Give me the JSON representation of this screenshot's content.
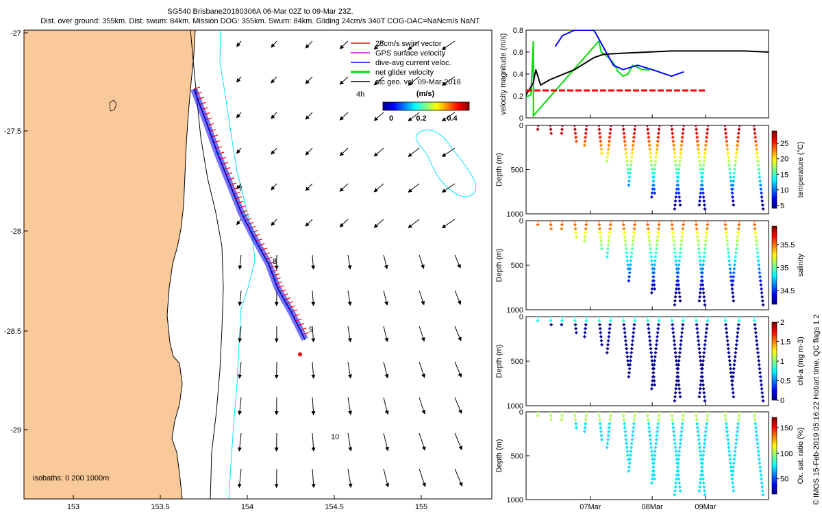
{
  "header": {
    "title_line1": "SG540 Brisbane20180306A 06-Mar 02Z to 09-Mar 23Z.",
    "title_line2": "Dist. over ground: 355km. Dist. swum: 84km. Mission DOG: 355km. Swum: 84km. Gliding 24cm/s 340T COG-DAC=NaNcm/s NaNT"
  },
  "stamp": "© IMOS 15-Feb-2019 05:16:22 Hobart time. QC flags 1  2",
  "colors": {
    "land": "#F9C99A",
    "swim": "#FF0000",
    "gps": "#CC00CC",
    "dac": "#0000FF",
    "net": "#00DD00",
    "geo": "#000000",
    "isobath200": "#000000",
    "isobath1000": "#00E5FF"
  },
  "map": {
    "lon_ticks": [
      "153",
      "153.5",
      "154",
      "154.5",
      "155"
    ],
    "lat_ticks": [
      "-27",
      "-27.5",
      "-28",
      "-28.5",
      "-29"
    ],
    "legend": [
      {
        "label": "25cm/s swim vector",
        "key": "swim"
      },
      {
        "label": "GPS surface velocity",
        "key": "gps"
      },
      {
        "label": "dive-avg current veloc.",
        "key": "dac"
      },
      {
        "label": "net glider velocity",
        "key": "net"
      },
      {
        "label": "sfc geo. vel. 09-Mar-2018",
        "key": "geo"
      }
    ],
    "four_h_label": "4h",
    "colorbar_title": "(m/s)",
    "colorbar_ticks": [
      "0",
      "0.2",
      "0.4"
    ],
    "day_labels": [
      "7",
      "8",
      "9",
      "10"
    ],
    "isobath_label": "isobaths: 0   200  1000m"
  },
  "chart_data": [
    {
      "type": "line",
      "title": "",
      "ylabel": "velocity magnitude (m/s)",
      "ylim": [
        0,
        0.8
      ],
      "y_ticks": [
        "0",
        "0.2",
        "0.4",
        "0.6",
        "0.8"
      ],
      "x_ticks": [
        "07Mar",
        "08Mar",
        "09Mar"
      ],
      "series": [
        {
          "name": "net glider velocity",
          "color": "#00DD00",
          "x": [
            0,
            0.02,
            0.03,
            0.03,
            0.3,
            0.31,
            0.34,
            0.36,
            0.38,
            0.4,
            0.42,
            0.44,
            0.46,
            0.48,
            0.5,
            0.51
          ],
          "y": [
            0.19,
            0.21,
            0.7,
            0.02,
            0.7,
            0.6,
            0.55,
            0.5,
            0.42,
            0.38,
            0.4,
            0.48,
            0.46,
            0.44,
            0.44,
            0.43
          ]
        },
        {
          "name": "dive-avg current veloc.",
          "color": "#0000FF",
          "x": [
            0.12,
            0.15,
            0.2,
            0.28,
            0.33,
            0.36,
            0.4,
            0.46,
            0.52,
            0.6,
            0.65
          ],
          "y": [
            0.65,
            0.75,
            0.8,
            0.8,
            0.6,
            0.48,
            0.44,
            0.48,
            0.44,
            0.38,
            0.42
          ]
        },
        {
          "name": "sfc geo. vel.",
          "color": "#000000",
          "x": [
            0,
            0.03,
            0.04,
            0.06,
            0.1,
            0.2,
            0.28,
            0.32,
            0.4,
            0.5,
            0.6,
            0.7,
            0.8,
            0.9,
            1.0
          ],
          "y": [
            0.21,
            0.32,
            0.44,
            0.3,
            0.35,
            0.44,
            0.55,
            0.58,
            0.59,
            0.6,
            0.61,
            0.61,
            0.61,
            0.61,
            0.6
          ]
        },
        {
          "name": "25cm/s swim vector",
          "color": "#FF0000",
          "x": [
            0,
            0.74
          ],
          "y": [
            0.25,
            0.25
          ]
        }
      ]
    },
    {
      "type": "scatter",
      "variable": "temperature (°C)",
      "ylabel": "Depth (m)",
      "ylim": [
        1000,
        0
      ],
      "y_ticks": [
        "0",
        "500",
        "1000"
      ],
      "clim": [
        4,
        29
      ],
      "colorbar_ticks": [
        "5",
        "10",
        "15",
        "20",
        "25"
      ],
      "profiles": [
        {
          "t": 0.05,
          "max_depth": 60
        },
        {
          "t": 0.1,
          "max_depth": 90
        },
        {
          "t": 0.15,
          "max_depth": 130
        },
        {
          "t": 0.2,
          "max_depth": 180
        },
        {
          "t": 0.25,
          "max_depth": 240
        },
        {
          "t": 0.3,
          "max_depth": 320
        },
        {
          "t": 0.35,
          "max_depth": 420
        },
        {
          "t": 0.4,
          "max_depth": 550
        },
        {
          "t": 0.45,
          "max_depth": 700
        },
        {
          "t": 0.5,
          "max_depth": 800
        },
        {
          "t": 0.55,
          "max_depth": 820
        },
        {
          "t": 0.6,
          "max_depth": 900
        },
        {
          "t": 0.65,
          "max_depth": 960
        },
        {
          "t": 0.7,
          "max_depth": 970
        },
        {
          "t": 0.75,
          "max_depth": 930
        },
        {
          "t": 0.82,
          "max_depth": 900
        },
        {
          "t": 0.88,
          "max_depth": 800
        },
        {
          "t": 0.94,
          "max_depth": 980
        }
      ]
    },
    {
      "type": "scatter",
      "variable": "salinity",
      "ylabel": "Depth (m)",
      "ylim": [
        1000,
        0
      ],
      "y_ticks": [
        "0",
        "500",
        "1000"
      ],
      "clim": [
        34.2,
        35.9
      ],
      "colorbar_ticks": [
        "34.5",
        "35",
        "35.5"
      ],
      "profiles": [
        {
          "t": 0.05,
          "max_depth": 60
        },
        {
          "t": 0.1,
          "max_depth": 90
        },
        {
          "t": 0.15,
          "max_depth": 130
        },
        {
          "t": 0.2,
          "max_depth": 180
        },
        {
          "t": 0.25,
          "max_depth": 240
        },
        {
          "t": 0.3,
          "max_depth": 320
        },
        {
          "t": 0.35,
          "max_depth": 420
        },
        {
          "t": 0.4,
          "max_depth": 550
        },
        {
          "t": 0.45,
          "max_depth": 700
        },
        {
          "t": 0.5,
          "max_depth": 800
        },
        {
          "t": 0.55,
          "max_depth": 820
        },
        {
          "t": 0.6,
          "max_depth": 900
        },
        {
          "t": 0.65,
          "max_depth": 960
        },
        {
          "t": 0.7,
          "max_depth": 970
        },
        {
          "t": 0.75,
          "max_depth": 930
        },
        {
          "t": 0.82,
          "max_depth": 900
        },
        {
          "t": 0.88,
          "max_depth": 800
        },
        {
          "t": 0.94,
          "max_depth": 980
        }
      ]
    },
    {
      "type": "scatter",
      "variable": "chl-a (mg m-3)",
      "ylabel": "Depth (m)",
      "ylim": [
        1000,
        0
      ],
      "y_ticks": [
        "0",
        "500",
        "1000"
      ],
      "clim": [
        0,
        2
      ],
      "colorbar_ticks": [
        "0",
        "0.5",
        "1",
        "1.5",
        "2"
      ],
      "profiles": [
        {
          "t": 0.05,
          "max_depth": 60
        },
        {
          "t": 0.1,
          "max_depth": 90
        },
        {
          "t": 0.15,
          "max_depth": 130
        },
        {
          "t": 0.2,
          "max_depth": 180
        },
        {
          "t": 0.25,
          "max_depth": 240
        },
        {
          "t": 0.3,
          "max_depth": 320
        },
        {
          "t": 0.35,
          "max_depth": 420
        },
        {
          "t": 0.4,
          "max_depth": 550
        },
        {
          "t": 0.45,
          "max_depth": 700
        },
        {
          "t": 0.5,
          "max_depth": 800
        },
        {
          "t": 0.55,
          "max_depth": 820
        },
        {
          "t": 0.6,
          "max_depth": 900
        },
        {
          "t": 0.65,
          "max_depth": 960
        },
        {
          "t": 0.7,
          "max_depth": 970
        },
        {
          "t": 0.75,
          "max_depth": 930
        },
        {
          "t": 0.82,
          "max_depth": 900
        },
        {
          "t": 0.88,
          "max_depth": 800
        },
        {
          "t": 0.94,
          "max_depth": 980
        }
      ]
    },
    {
      "type": "scatter",
      "variable": "Ox. sat. ratio (%)",
      "ylabel": "Depth (m)",
      "ylim": [
        1000,
        0
      ],
      "y_ticks": [
        "0",
        "500",
        "1000"
      ],
      "clim": [
        20,
        170
      ],
      "colorbar_ticks": [
        "50",
        "100",
        "150"
      ],
      "x_ticks": [
        "07Mar",
        "08Mar",
        "09Mar"
      ],
      "profiles": [
        {
          "t": 0.05,
          "max_depth": 60
        },
        {
          "t": 0.1,
          "max_depth": 90
        },
        {
          "t": 0.15,
          "max_depth": 130
        },
        {
          "t": 0.2,
          "max_depth": 180
        },
        {
          "t": 0.25,
          "max_depth": 240
        },
        {
          "t": 0.3,
          "max_depth": 320
        },
        {
          "t": 0.35,
          "max_depth": 420
        },
        {
          "t": 0.4,
          "max_depth": 550
        },
        {
          "t": 0.45,
          "max_depth": 700
        },
        {
          "t": 0.5,
          "max_depth": 800
        },
        {
          "t": 0.55,
          "max_depth": 820
        },
        {
          "t": 0.6,
          "max_depth": 900
        },
        {
          "t": 0.65,
          "max_depth": 960
        },
        {
          "t": 0.7,
          "max_depth": 970
        },
        {
          "t": 0.75,
          "max_depth": 930
        },
        {
          "t": 0.82,
          "max_depth": 900
        },
        {
          "t": 0.88,
          "max_depth": 800
        },
        {
          "t": 0.94,
          "max_depth": 980
        }
      ]
    }
  ]
}
